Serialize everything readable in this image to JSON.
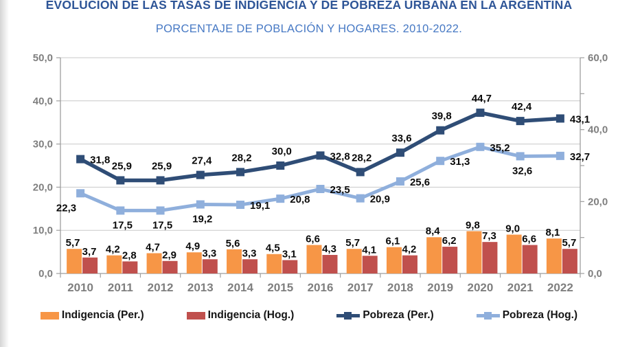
{
  "page": {
    "title": "EVOLUCIÓN DE LAS TASAS DE INDIGENCIA Y DE POBREZA URBANA EN LA ARGENTINA",
    "subtitle": "PORCENTAJE DE POBLACIÓN Y HOGARES. 2010-2022."
  },
  "chart_data": {
    "type": "bar",
    "subtype": "combo-bar-line-dual-axis",
    "number_format": "decimal-comma",
    "categories": [
      "2010",
      "2011",
      "2012",
      "2013",
      "2014",
      "2015",
      "2016",
      "2017",
      "2018",
      "2019",
      "2020",
      "2021",
      "2022"
    ],
    "series": [
      {
        "name": "Indigencia (Per.)",
        "kind": "bar",
        "axis": "left",
        "color": "#f79646",
        "values": [
          5.7,
          4.2,
          4.7,
          4.9,
          5.6,
          4.5,
          6.6,
          5.7,
          6.1,
          8.4,
          9.8,
          9.0,
          8.1
        ]
      },
      {
        "name": "Indigencia (Hog.)",
        "kind": "bar",
        "axis": "left",
        "color": "#c0504d",
        "values": [
          3.7,
          2.8,
          2.9,
          3.3,
          3.3,
          3.1,
          4.3,
          4.1,
          4.2,
          6.2,
          7.3,
          6.6,
          5.7
        ]
      },
      {
        "name": "Pobreza (Per.)",
        "kind": "line",
        "axis": "right",
        "color": "#2f4d76",
        "values": [
          31.8,
          25.9,
          25.9,
          27.4,
          28.2,
          30.0,
          32.8,
          28.2,
          33.6,
          39.8,
          44.7,
          42.4,
          43.1
        ],
        "label_pos": [
          "right",
          "above",
          "above",
          "above",
          "above",
          "above",
          "right",
          "above",
          "above",
          "above",
          "above",
          "above",
          "right"
        ]
      },
      {
        "name": "Pobreza (Hog.)",
        "kind": "line",
        "axis": "right",
        "color": "#8fafdc",
        "values": [
          22.3,
          17.5,
          17.5,
          19.2,
          19.1,
          20.8,
          23.5,
          20.9,
          25.6,
          31.3,
          35.2,
          32.6,
          32.7
        ],
        "label_pos": [
          "below-left",
          "below",
          "below",
          "below",
          "right",
          "right",
          "right",
          "right",
          "right",
          "right",
          "right",
          "below",
          "right"
        ]
      }
    ],
    "axes": {
      "left": {
        "min": 0,
        "max": 50,
        "step": 10,
        "tick_labels": [
          "0,0",
          "10,0",
          "20,0",
          "30,0",
          "40,0",
          "50,0"
        ]
      },
      "right": {
        "min": 0,
        "max": 60,
        "label_step": 20,
        "minor_tick_step": 10,
        "tick_labels": [
          "0,0",
          "20,0",
          "40,0",
          "60,0"
        ]
      }
    },
    "grid": "horizontal",
    "legend_position": "bottom"
  }
}
